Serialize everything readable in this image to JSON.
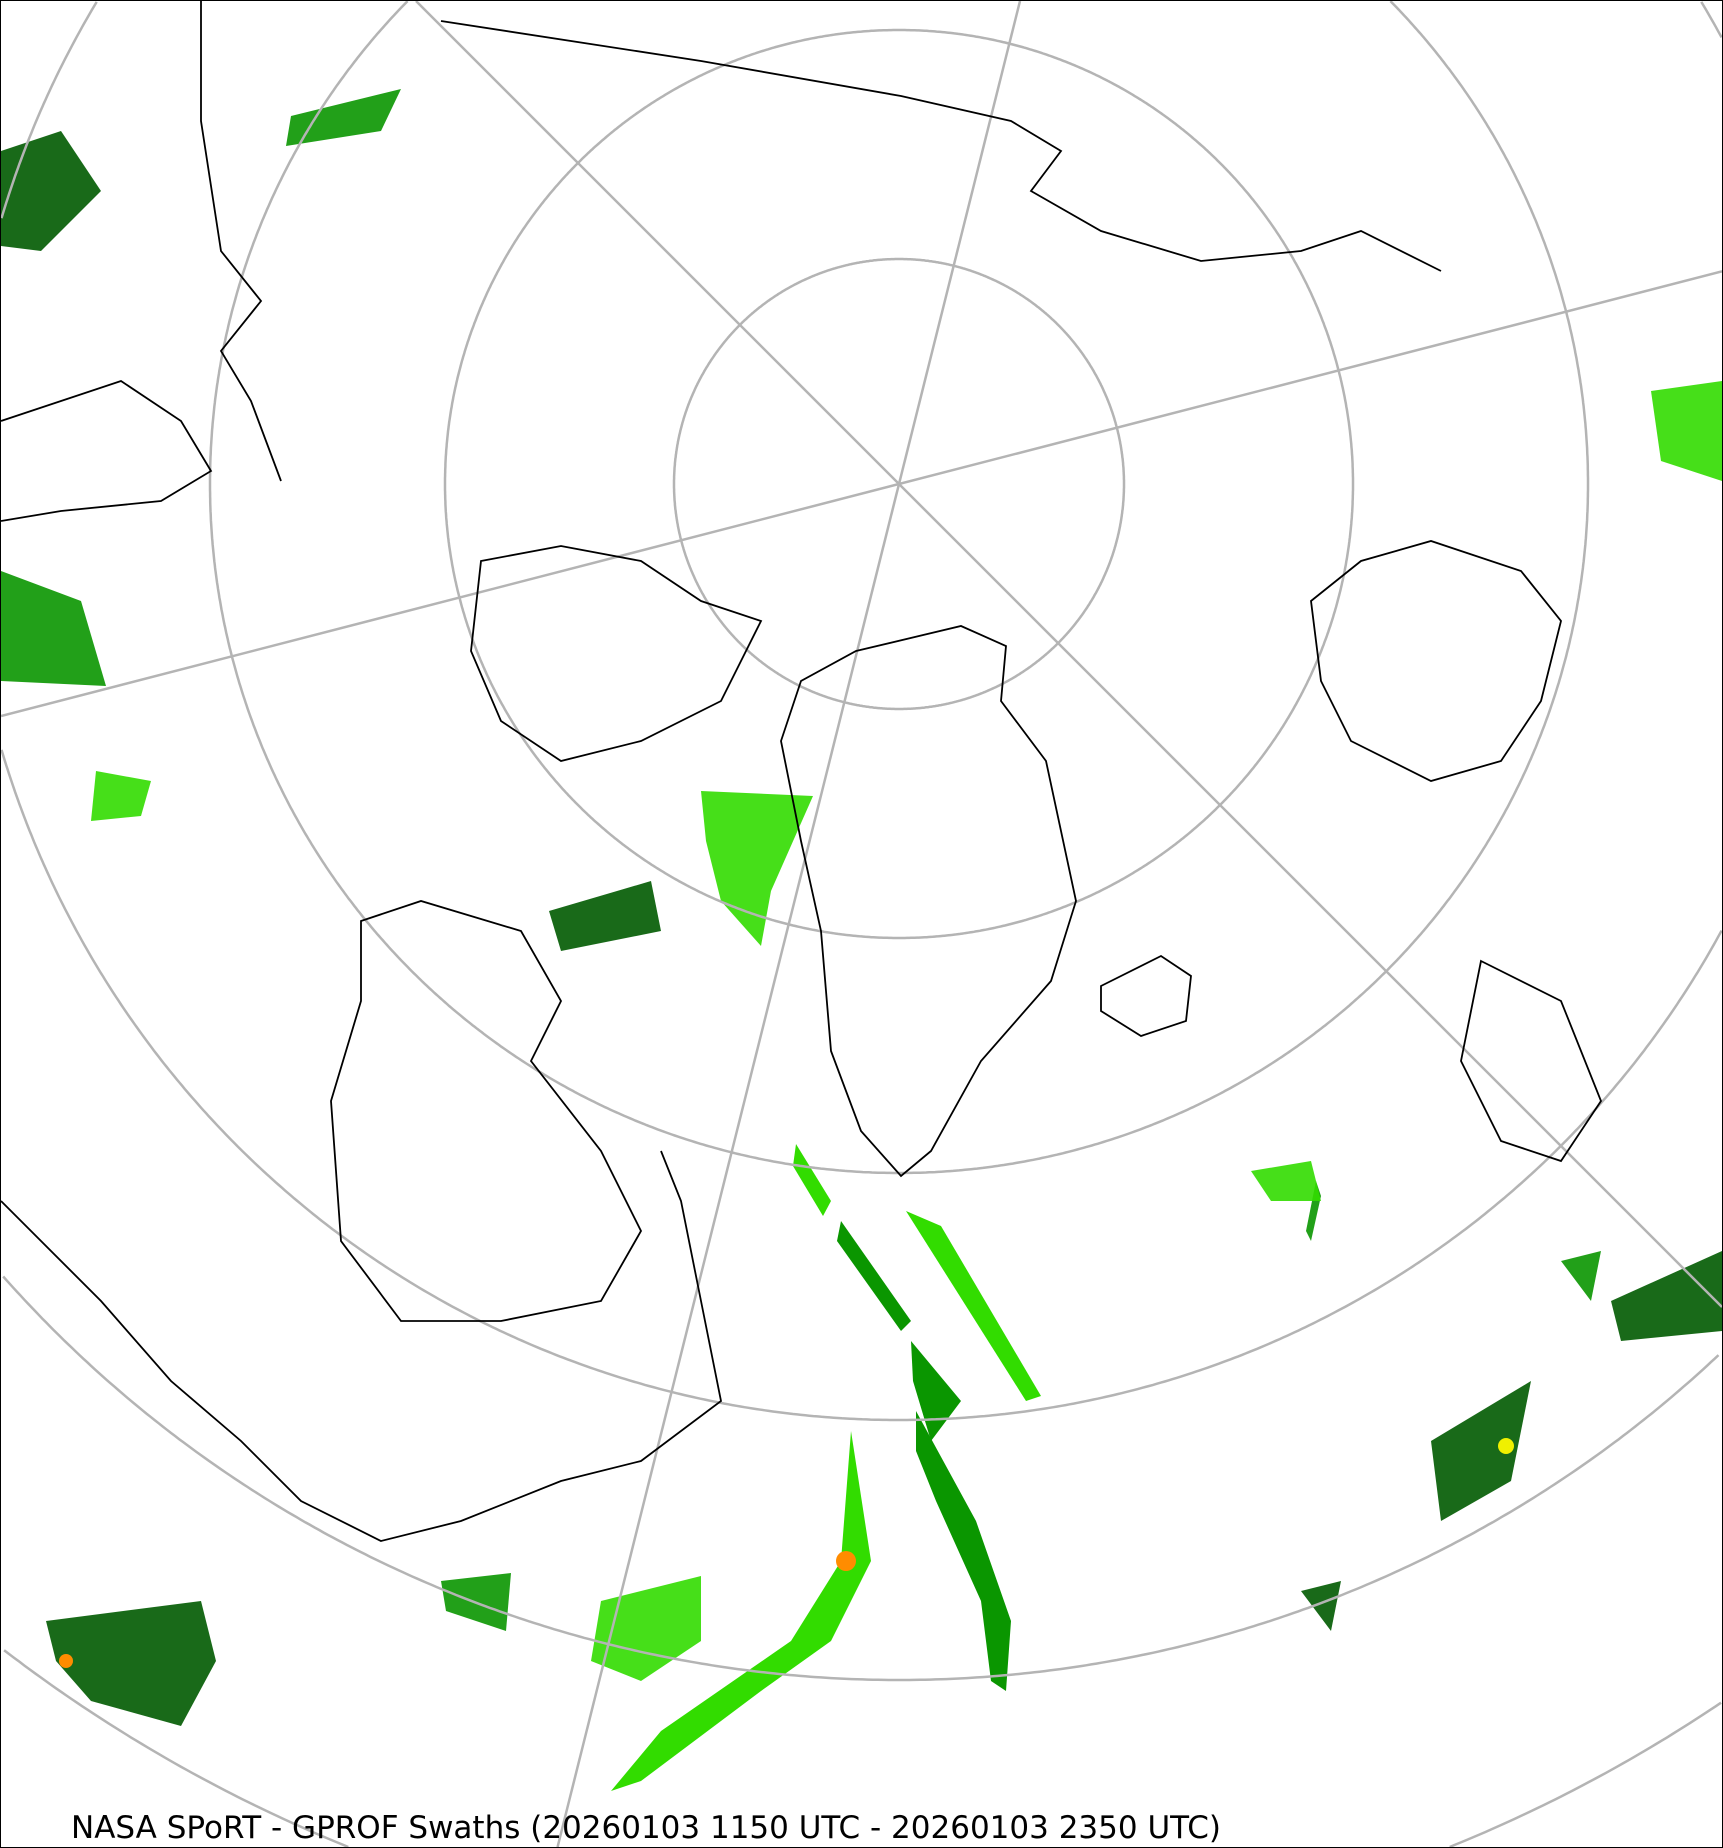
{
  "caption": "NASA SPoRT - GPROF Swaths (20260103 1150 UTC - 20260103 2350 UTC)",
  "map": {
    "projection": "north polar stereographic",
    "graticule_color": "#b4b4b4",
    "coastline_color": "#000000",
    "precip_colors": [
      "#005a00",
      "#0a9600",
      "#32dc00",
      "#a0f014",
      "#f0f000",
      "#ff8c00",
      "#ff3200"
    ]
  }
}
